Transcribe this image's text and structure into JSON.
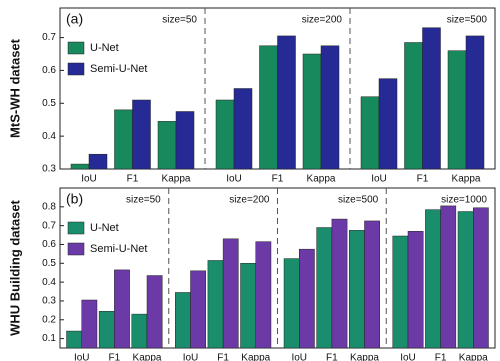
{
  "chart_data": [
    {
      "type": "bar",
      "panel_label": "(a)",
      "ylabel": "MtS-WH dataset",
      "groups": [
        "size=50",
        "size=200",
        "size=500"
      ],
      "categories": [
        "IoU",
        "F1",
        "Kappa",
        "IoU",
        "F1",
        "Kappa",
        "IoU",
        "F1",
        "Kappa"
      ],
      "series": [
        {
          "name": "U-Net",
          "color": "#17895d",
          "values": [
            0.315,
            0.48,
            0.445,
            0.51,
            0.675,
            0.65,
            0.52,
            0.685,
            0.66
          ]
        },
        {
          "name": "Semi-U-Net",
          "color": "#262a94",
          "values": [
            0.345,
            0.51,
            0.475,
            0.545,
            0.705,
            0.675,
            0.575,
            0.73,
            0.705
          ]
        }
      ],
      "ylim": [
        0.3,
        0.79
      ],
      "yticks": [
        0.3,
        0.4,
        0.5,
        0.6,
        0.7
      ]
    },
    {
      "type": "bar",
      "panel_label": "(b)",
      "ylabel": "WHU Building dataset",
      "groups": [
        "size=50",
        "size=200",
        "size=500",
        "size=1000"
      ],
      "categories": [
        "IoU",
        "F1",
        "Kappa",
        "IoU",
        "F1",
        "Kappa",
        "IoU",
        "F1",
        "Kappa",
        "IoU",
        "F1",
        "Kappa"
      ],
      "series": [
        {
          "name": "U-Net",
          "color": "#1a8d6c",
          "values": [
            0.14,
            0.245,
            0.23,
            0.345,
            0.515,
            0.5,
            0.525,
            0.69,
            0.675,
            0.645,
            0.785,
            0.775
          ]
        },
        {
          "name": "Semi-U-Net",
          "color": "#6b3aa6",
          "values": [
            0.305,
            0.465,
            0.435,
            0.46,
            0.63,
            0.615,
            0.575,
            0.735,
            0.725,
            0.67,
            0.805,
            0.795
          ]
        }
      ],
      "ylim": [
        0.05,
        0.9
      ],
      "yticks": [
        0.1,
        0.2,
        0.3,
        0.4,
        0.5,
        0.6,
        0.7,
        0.8
      ]
    }
  ]
}
